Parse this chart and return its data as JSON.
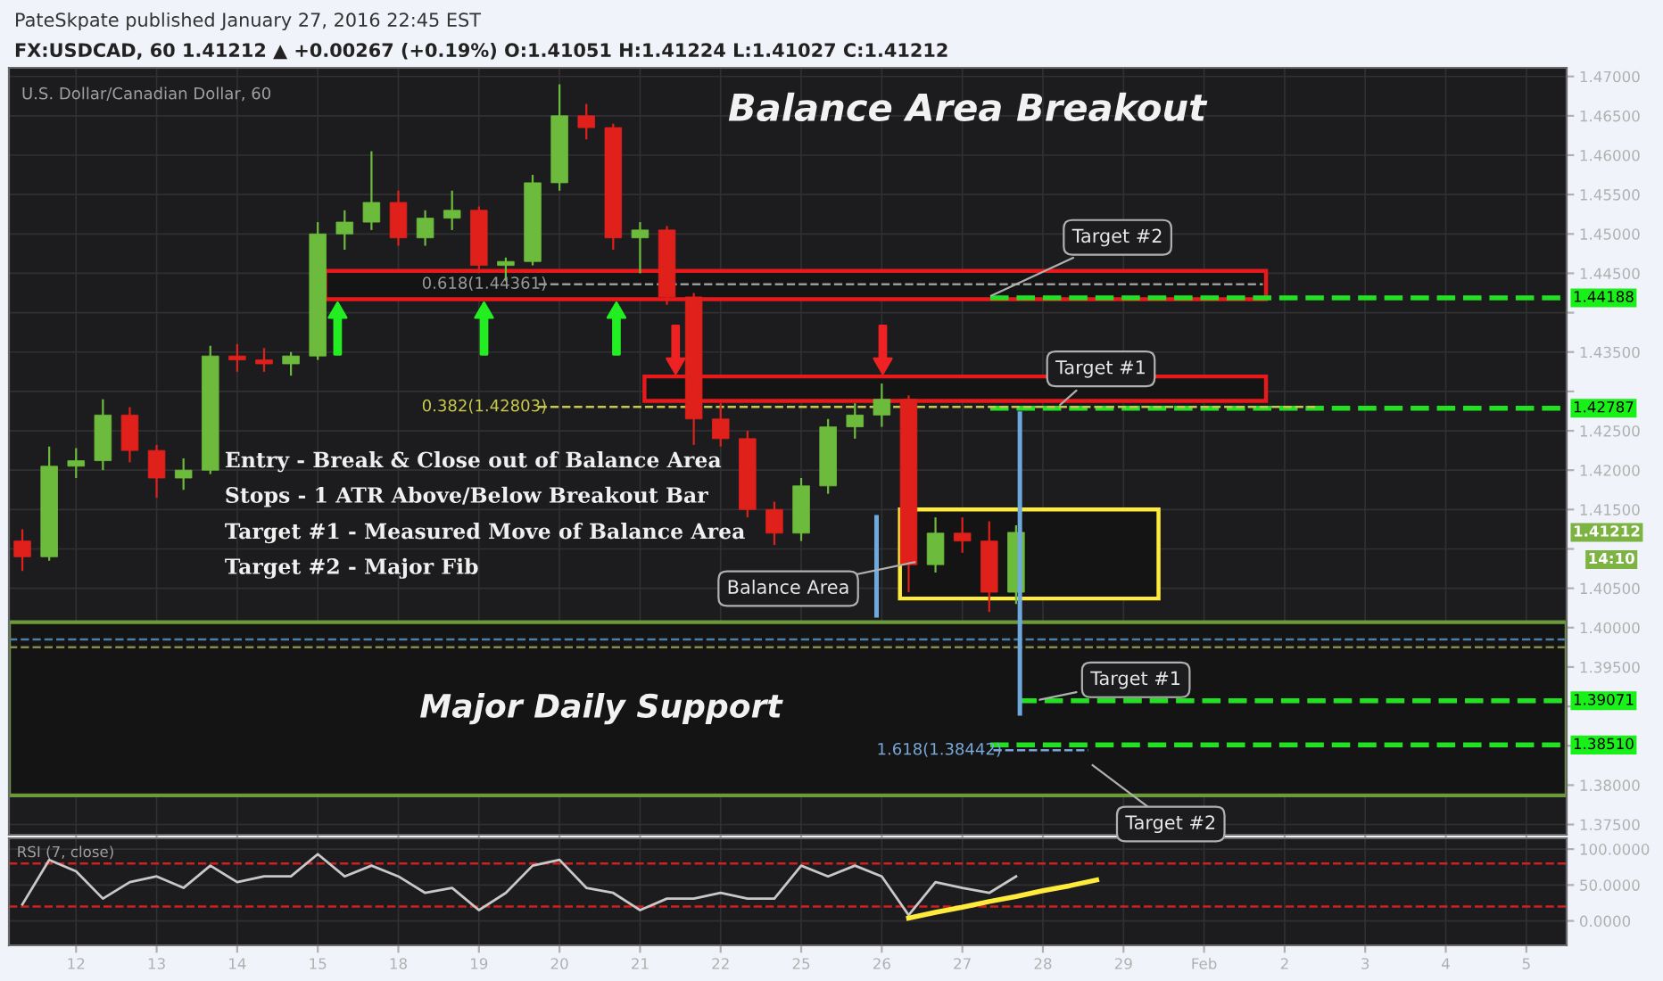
{
  "chart_data": [
    {
      "type": "candlestick",
      "title": "Balance Area Breakout",
      "subtitle": "U.S. Dollar/Canadian Dollar, 60",
      "categories": [
        null,
        null,
        null,
        null,
        null,
        null,
        null,
        null,
        null,
        null,
        null,
        null,
        null,
        null,
        null,
        null,
        null,
        null,
        null,
        null,
        null,
        null,
        null,
        null,
        null,
        null,
        null,
        null,
        null,
        null,
        null,
        null,
        null,
        null,
        null,
        null,
        null,
        null,
        null,
        null,
        null,
        null,
        null,
        null,
        null,
        null,
        null,
        null,
        null,
        null,
        null,
        null,
        null,
        null,
        null,
        null,
        null,
        null
      ],
      "ohlc": [
        [
          1.411,
          1.4125,
          1.4072,
          1.409
        ],
        [
          1.409,
          1.423,
          1.4085,
          1.4205
        ],
        [
          1.4205,
          1.4228,
          1.419,
          1.4212
        ],
        [
          1.4212,
          1.429,
          1.42,
          1.427
        ],
        [
          1.427,
          1.428,
          1.421,
          1.4225
        ],
        [
          1.4225,
          1.4232,
          1.4165,
          1.419
        ],
        [
          1.419,
          1.4215,
          1.4175,
          1.42
        ],
        [
          1.42,
          1.4358,
          1.4195,
          1.4345
        ],
        [
          1.4345,
          1.436,
          1.4325,
          1.434
        ],
        [
          1.434,
          1.4355,
          1.4325,
          1.4335
        ],
        [
          1.4335,
          1.435,
          1.432,
          1.4345
        ],
        [
          1.4345,
          1.4515,
          1.434,
          1.45
        ],
        [
          1.45,
          1.453,
          1.448,
          1.4515
        ],
        [
          1.4515,
          1.4605,
          1.4505,
          1.454
        ],
        [
          1.454,
          1.4555,
          1.4485,
          1.4495
        ],
        [
          1.4495,
          1.453,
          1.4485,
          1.452
        ],
        [
          1.452,
          1.4555,
          1.4505,
          1.453
        ],
        [
          1.453,
          1.4535,
          1.445,
          1.446
        ],
        [
          1.446,
          1.447,
          1.444,
          1.4465
        ],
        [
          1.4465,
          1.4575,
          1.446,
          1.4565
        ],
        [
          1.4565,
          1.469,
          1.4555,
          1.465
        ],
        [
          1.465,
          1.4665,
          1.462,
          1.4635
        ],
        [
          1.4635,
          1.464,
          1.448,
          1.4495
        ],
        [
          1.4495,
          1.4515,
          1.445,
          1.4505
        ],
        [
          1.4505,
          1.451,
          1.441,
          1.442
        ],
        [
          1.442,
          1.4425,
          1.4232,
          1.4265
        ],
        [
          1.4265,
          1.4285,
          1.423,
          1.424
        ],
        [
          1.424,
          1.425,
          1.414,
          1.415
        ],
        [
          1.415,
          1.416,
          1.4105,
          1.412
        ],
        [
          1.412,
          1.419,
          1.411,
          1.418
        ],
        [
          1.418,
          1.4265,
          1.417,
          1.4255
        ],
        [
          1.4255,
          1.4285,
          1.424,
          1.427
        ],
        [
          1.427,
          1.431,
          1.4255,
          1.429
        ],
        [
          1.429,
          1.4295,
          1.4045,
          1.408
        ],
        [
          1.408,
          1.414,
          1.407,
          1.412
        ],
        [
          1.412,
          1.414,
          1.4095,
          1.411
        ],
        [
          1.411,
          1.4135,
          1.402,
          1.4045
        ],
        [
          1.4045,
          1.413,
          1.403,
          1.4121
        ],
        null,
        null,
        null,
        null,
        null,
        null,
        null,
        null,
        null,
        null,
        null,
        null,
        null,
        null,
        null,
        null,
        null,
        null,
        null,
        null
      ],
      "colors": [
        "#e0201b",
        "#6dbb3c",
        "#6dbb3c",
        "#6dbb3c",
        "#e0201b",
        "#e0201b",
        "#6dbb3c",
        "#6dbb3c",
        "#e0201b",
        "#e0201b",
        "#6dbb3c",
        "#6dbb3c",
        "#6dbb3c",
        "#6dbb3c",
        "#e0201b",
        "#6dbb3c",
        "#6dbb3c",
        "#e0201b",
        "#6dbb3c",
        "#6dbb3c",
        "#6dbb3c",
        "#e0201b",
        "#e0201b",
        "#6dbb3c",
        "#e0201b",
        "#e0201b",
        "#e0201b",
        "#e0201b",
        "#e0201b",
        "#6dbb3c",
        "#6dbb3c",
        "#6dbb3c",
        "#6dbb3c",
        "#e0201b",
        "#6dbb3c",
        "#e0201b",
        "#e0201b",
        "#6dbb3c",
        null,
        null,
        null,
        null,
        null,
        null,
        null,
        null,
        null,
        null,
        null,
        null,
        null,
        null,
        null,
        null,
        null,
        null,
        null,
        null
      ],
      "ylim": [
        1.3737,
        1.4711
      ],
      "yticks": [
        {
          "value": 1.375,
          "label": "1.37500"
        },
        {
          "value": 1.38,
          "label": "1.38000"
        },
        {
          "value": 1.385,
          "label": null
        },
        {
          "value": 1.39,
          "label": null
        },
        {
          "value": 1.395,
          "label": "1.39500"
        },
        {
          "value": 1.4,
          "label": "1.40000"
        },
        {
          "value": 1.405,
          "label": "1.40500"
        },
        {
          "value": 1.41,
          "label": null
        },
        {
          "value": 1.415,
          "label": "1.41500"
        },
        {
          "value": 1.42,
          "label": "1.42000"
        },
        {
          "value": 1.425,
          "label": "1.42500"
        },
        {
          "value": 1.43,
          "label": null
        },
        {
          "value": 1.435,
          "label": "1.43500"
        },
        {
          "value": 1.44,
          "label": null
        },
        {
          "value": 1.445,
          "label": "1.44500"
        },
        {
          "value": 1.45,
          "label": "1.45000"
        },
        {
          "value": 1.455,
          "label": "1.45500"
        },
        {
          "value": 1.46,
          "label": "1.46000"
        },
        {
          "value": 1.465,
          "label": "1.46500"
        },
        {
          "value": 1.47,
          "label": "1.47000"
        }
      ],
      "grid": true,
      "tick_labels": "y",
      "bands": [
        {
          "axis": "y",
          "from": 1.3787,
          "to": 1.4007,
          "label": "Major Daily Support",
          "color": "#6a9a3a"
        },
        {
          "axis": "y",
          "from": 1.4417,
          "to": 1.4453,
          "color": "#e8191b"
        },
        {
          "axis": "y",
          "from": 1.4288,
          "to": 1.4319,
          "color": "#e8191b"
        },
        {
          "axis": "y",
          "from": 1.4037,
          "to": 1.415,
          "color": "#ffeb3b"
        }
      ],
      "ref_lines": [
        {
          "axis": "y",
          "value": 1.44188,
          "label": "1.44188",
          "color": "#22e022",
          "line_style": "dashed"
        },
        {
          "axis": "y",
          "value": 1.42787,
          "label": "1.42787",
          "color": "#22e022",
          "line_style": "dashed"
        },
        {
          "axis": "y",
          "value": 1.39071,
          "label": "1.39071",
          "color": "#22e022",
          "line_style": "dashed"
        },
        {
          "axis": "y",
          "value": 1.3851,
          "label": "1.38510",
          "color": "#22e022",
          "line_style": "dashed"
        },
        {
          "axis": "y",
          "value": 1.44361,
          "label": "0.618(1.44361)",
          "color": "#9a9a9a",
          "line_style": "dashed"
        },
        {
          "axis": "y",
          "value": 1.42803,
          "label": "0.382(1.42803)",
          "color": "#c8c84a",
          "line_style": "dashed"
        },
        {
          "axis": "y",
          "value": 1.38442,
          "label": "1.618(1.38442)",
          "color": "#7aa7d8",
          "line_style": "dashed"
        },
        {
          "axis": "y",
          "value": 1.3985,
          "color": "#4a7fa8",
          "line_style": "dashed"
        },
        {
          "axis": "y",
          "value": 1.3975,
          "color": "#8a8a4a",
          "line_style": "dashed"
        }
      ],
      "annotations": [
        "PateSkpate published January 27, 2016 22:45 EST",
        "FX:USDCAD, 60 1.41212 ▲ +0.00267 (+0.19%) O:1.41051 H:1.41224 L:1.41027 C:1.41212",
        "Entry - Break & Close out of Balance Area",
        "Stops - 1 ATR Above/Below Breakout Bar",
        "Target #1 - Measured Move of Balance Area",
        "Target #2 - Major Fib",
        {
          "text": "Target #2",
          "y": 1.44188
        },
        {
          "text": "Target #1",
          "y": 1.42787
        },
        "Balance Area",
        {
          "text": "Target #1",
          "y": 1.39071
        },
        "Target #2",
        "1.41212",
        "14:10"
      ]
    },
    {
      "type": "line",
      "title": "RSI (7, close)",
      "categories": [
        null,
        null,
        "12",
        null,
        null,
        "13",
        null,
        null,
        "14",
        null,
        null,
        "15",
        null,
        null,
        "18",
        null,
        null,
        "19",
        null,
        null,
        "20",
        null,
        null,
        "21",
        null,
        null,
        "22",
        null,
        null,
        "25",
        null,
        null,
        "26",
        null,
        null,
        "27",
        null,
        null,
        "28",
        null,
        null,
        "29",
        null,
        null,
        "Feb",
        null,
        null,
        "2",
        null,
        null,
        "3",
        null,
        null,
        "4",
        null,
        null,
        "5",
        null
      ],
      "series": [
        {
          "color": "#c8c8c8",
          "values": [
            23,
            85,
            69,
            31,
            54,
            62,
            46,
            77,
            54,
            62,
            62,
            93,
            62,
            77,
            62,
            39,
            46,
            15,
            39,
            77,
            85,
            46,
            39,
            15,
            31,
            31,
            39,
            31,
            31,
            77,
            62,
            77,
            62,
            8,
            54,
            46,
            39,
            62,
            null,
            null,
            null,
            null,
            null,
            null,
            null,
            null,
            null,
            null,
            null,
            null,
            null,
            null,
            null,
            null,
            null,
            null,
            null,
            null
          ]
        },
        {
          "color": "#ffeb3b",
          "values": [
            null,
            null,
            null,
            null,
            null,
            null,
            null,
            null,
            null,
            null,
            null,
            null,
            null,
            null,
            null,
            null,
            null,
            null,
            null,
            null,
            null,
            null,
            null,
            null,
            null,
            null,
            null,
            null,
            null,
            null,
            null,
            null,
            null,
            4,
            12,
            19,
            27,
            34,
            42,
            49,
            57,
            null,
            null,
            null,
            null,
            null,
            null,
            null,
            null,
            null,
            null,
            null,
            null,
            null,
            null,
            null,
            null,
            null
          ]
        }
      ],
      "ylim": [
        -34,
        115
      ],
      "yticks": [
        {
          "value": 0,
          "label": "0.0000"
        },
        {
          "value": 50,
          "label": "50.0000"
        },
        {
          "value": 100,
          "label": "100.0000"
        }
      ],
      "grid": true,
      "ref_lines": [
        {
          "axis": "y",
          "value": 80,
          "color": "#d02020",
          "line_style": "dashed"
        },
        {
          "axis": "y",
          "value": 20,
          "color": "#d02020",
          "line_style": "dashed"
        }
      ]
    }
  ]
}
